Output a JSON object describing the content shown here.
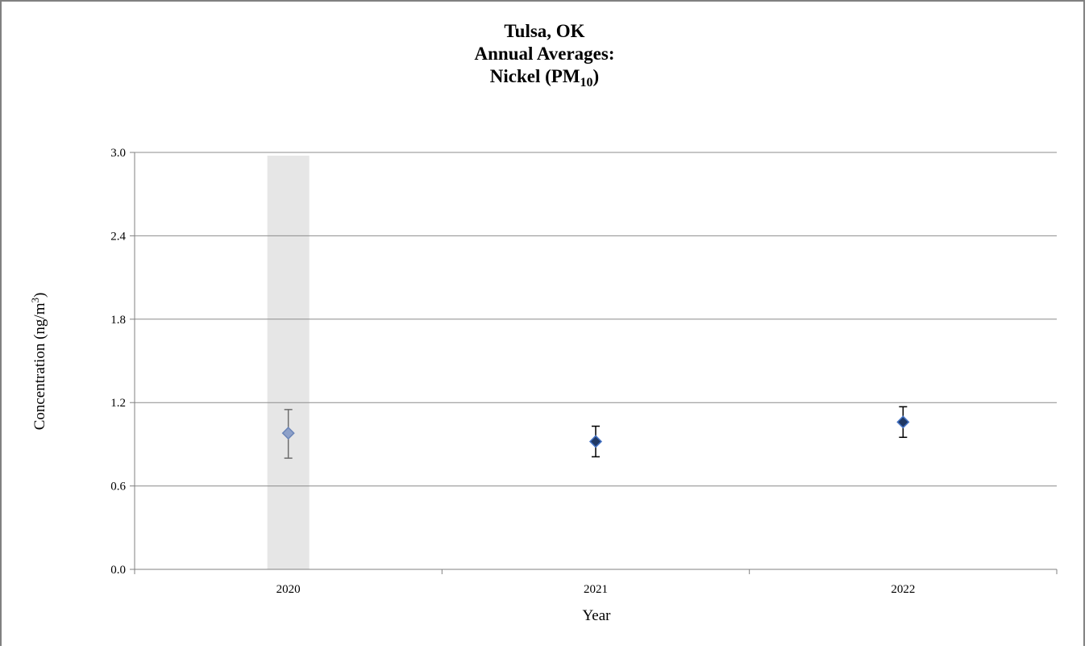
{
  "chart_data": {
    "type": "scatter",
    "title": {
      "line1": "Tulsa, OK",
      "line2": "Annual Averages:",
      "line3_main": "Nickel (PM",
      "line3_sub": "10",
      "line3_end": ")"
    },
    "xlabel": "Year",
    "ylabel": {
      "main": "Concentration (ng/m",
      "sup": "3",
      "end": ")"
    },
    "ylim": [
      0.0,
      3.0
    ],
    "yticks": [
      "0.0",
      "0.6",
      "1.2",
      "1.8",
      "2.4",
      "3.0"
    ],
    "categories": [
      "2020",
      "2021",
      "2022"
    ],
    "values": [
      0.98,
      0.92,
      1.06
    ],
    "error_low": [
      0.8,
      0.81,
      0.95
    ],
    "error_high": [
      1.15,
      1.03,
      1.17
    ],
    "highlighted_category": "2020",
    "grid": true,
    "colors": {
      "marker_normal": "#1f3864",
      "marker_normal_border": "#4472c4",
      "marker_highlight": "#8ea1c9",
      "marker_highlight_border": "#6b85b8",
      "errorbar_normal": "#000000",
      "errorbar_highlight": "#6d6d6d",
      "highlight_band": "#e6e6e6",
      "gridline": "#8c8c8c",
      "axis": "#808080"
    }
  }
}
